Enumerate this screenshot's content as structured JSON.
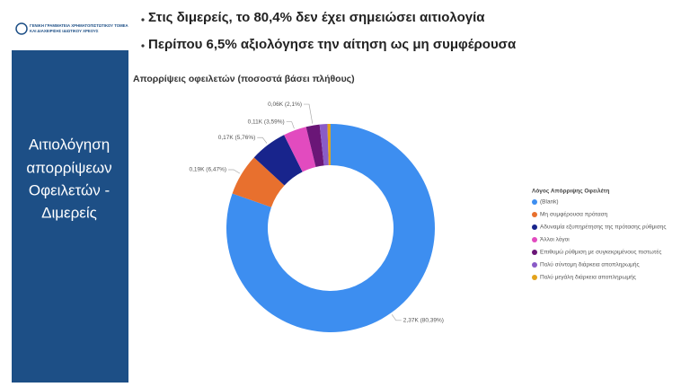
{
  "slide": {
    "logo_text": [
      "ΓΕΝΙΚΗ ΓΡΑΜΜΑΤΕΙΑ ΧΡΗΜΑΤΟΠΙΣΤΩΤΙΚΟΥ ΤΟΜΕΑ",
      "ΚΑΙ ΔΙΑΧΕΙΡΙΣΗΣ ΙΔΙΩΤΙΚΟΥ ΧΡΕΟΥΣ"
    ],
    "panel_title": [
      "Αιτιολόγηση",
      "απορρίψεων",
      "Οφειλετών -",
      "Διμερείς"
    ],
    "bullets": [
      "Στις διμερείς, το 80,4% δεν έχει σημειώσει αιτιολογία",
      "Περίπου 6,5% αξιολόγησε την αίτηση ως μη συμφέρουσα"
    ]
  },
  "chart_data": {
    "type": "donut",
    "title": "Απορρίψεις οφειλετών (ποσοστά βάσει πλήθους)",
    "legend_title": "Λόγος Απόρριψης Οφειλέτη",
    "legend_position": "right",
    "categories": [
      "(Blank)",
      "Μη συμφέρουσα πρόταση",
      "Αδυναμία εξυπηρέτησης της πρότασης ρύθμισης",
      "Άλλοι λόγοι",
      "Επιθυμώ ρύθμιση με συγκεκριμένους πιστωτές",
      "Πολύ σύντομη διάρκεια αποπληρωμής",
      "Πολύ μεγάλη διάρκεια αποπληρωμής"
    ],
    "values": [
      80.39,
      6.47,
      5.76,
      3.59,
      2.1,
      1.2,
      0.49
    ],
    "value_labels": [
      "2,37K (80,39%)",
      "0,19K (6,47%)",
      "0,17K (5,76%)",
      "0,11K (3,59%)",
      "0,06K (2,1%)",
      null,
      null
    ],
    "colors": [
      "#3d8ef0",
      "#e8702e",
      "#18248c",
      "#e24bbf",
      "#6a1677",
      "#8a5bc7",
      "#e3a31c"
    ]
  }
}
